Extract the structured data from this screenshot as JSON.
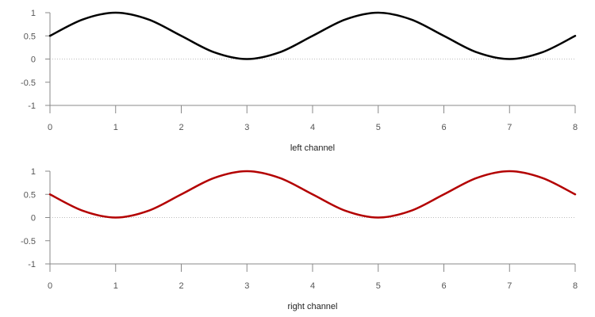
{
  "chart_data": [
    {
      "type": "line",
      "xlabel": "left channel",
      "ylabel": "",
      "xlim": [
        0,
        8
      ],
      "ylim": [
        -1,
        1
      ],
      "x_ticks": [
        "0",
        "1",
        "2",
        "3",
        "4",
        "5",
        "6",
        "7",
        "8"
      ],
      "y_ticks": [
        "1",
        "0.5",
        "0",
        "-0.5",
        "-1"
      ],
      "zero_line": true,
      "grid": false,
      "series": [
        {
          "color": "#000000",
          "x": [
            0,
            0.5,
            1,
            1.5,
            2,
            2.5,
            3,
            3.5,
            4,
            4.5,
            5,
            5.5,
            6,
            6.5,
            7,
            7.5,
            8
          ],
          "y": [
            0.5,
            0.854,
            1,
            0.854,
            0.5,
            0.146,
            0,
            0.146,
            0.5,
            0.854,
            1,
            0.854,
            0.5,
            0.146,
            0,
            0.146,
            0.5
          ]
        }
      ]
    },
    {
      "type": "line",
      "xlabel": "right channel",
      "ylabel": "",
      "xlim": [
        0,
        8
      ],
      "ylim": [
        -1,
        1
      ],
      "x_ticks": [
        "0",
        "1",
        "2",
        "3",
        "4",
        "5",
        "6",
        "7",
        "8"
      ],
      "y_ticks": [
        "1",
        "0.5",
        "0",
        "-0.5",
        "-1"
      ],
      "zero_line": true,
      "grid": false,
      "series": [
        {
          "color": "#b30000",
          "x": [
            0,
            0.5,
            1,
            1.5,
            2,
            2.5,
            3,
            3.5,
            4,
            4.5,
            5,
            5.5,
            6,
            6.5,
            7,
            7.5,
            8
          ],
          "y": [
            0.5,
            0.146,
            0,
            0.146,
            0.5,
            0.854,
            1,
            0.854,
            0.5,
            0.146,
            0,
            0.146,
            0.5,
            0.854,
            1,
            0.854,
            0.5
          ]
        }
      ]
    }
  ]
}
